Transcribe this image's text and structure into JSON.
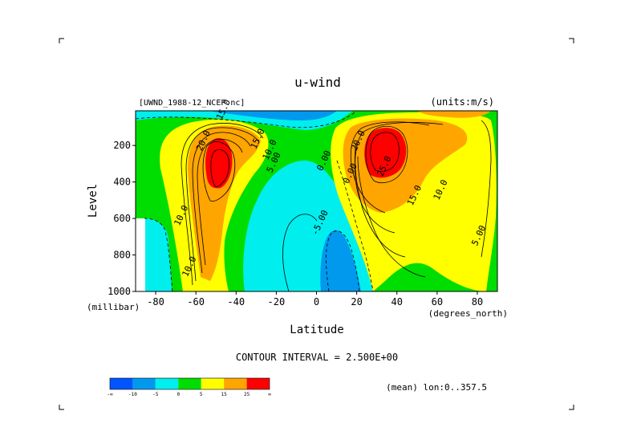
{
  "chart_data": {
    "type": "heatmap",
    "title": "u-wind",
    "dataset_label": "[UWND_1988-12_NCEP.nc]",
    "units_label": "(units:m/s)",
    "xlabel": "Latitude",
    "xunits": "(degrees_north)",
    "ylabel": "Level",
    "yunits": "(millibar)",
    "xlim": [
      -90,
      90
    ],
    "ylim": [
      1000,
      10
    ],
    "y_reversed": true,
    "xticks": [
      -80,
      -60,
      -40,
      -20,
      0,
      20,
      40,
      60,
      80
    ],
    "yticks": [
      200,
      400,
      600,
      800,
      1000
    ],
    "contour_interval_text": "CONTOUR INTERVAL = 2.500E+00",
    "footer_note": "(mean) lon:0..357.5",
    "contour_labels": [
      {
        "text": "15.0",
        "x": -45,
        "y": 10
      },
      {
        "text": "20.0",
        "x": -55,
        "y": 180
      },
      {
        "text": "15.0",
        "x": -28,
        "y": 170
      },
      {
        "text": "10.0",
        "x": -22,
        "y": 230
      },
      {
        "text": "5.00",
        "x": -20,
        "y": 300
      },
      {
        "text": "10.0",
        "x": -66,
        "y": 590
      },
      {
        "text": "10.0",
        "x": -62,
        "y": 870
      },
      {
        "text": "0.00",
        "x": 5,
        "y": 290
      },
      {
        "text": "0.00",
        "x": 18,
        "y": 360
      },
      {
        "text": "-5.00",
        "x": 3,
        "y": 630
      },
      {
        "text": "20.0",
        "x": 22,
        "y": 180
      },
      {
        "text": "25.0",
        "x": 35,
        "y": 320
      },
      {
        "text": "15.0",
        "x": 50,
        "y": 480
      },
      {
        "text": "10.0",
        "x": 63,
        "y": 450
      },
      {
        "text": "5.00",
        "x": 82,
        "y": 700
      }
    ],
    "colorbar": {
      "levels": [
        "-∞",
        "-10",
        "-5",
        "0",
        "5",
        "15",
        "25",
        "∞"
      ],
      "colors": [
        "#0055ff",
        "#0099ee",
        "#00eeee",
        "#00dd00",
        "#ffff00",
        "#ffa500",
        "#ff0000"
      ]
    }
  }
}
